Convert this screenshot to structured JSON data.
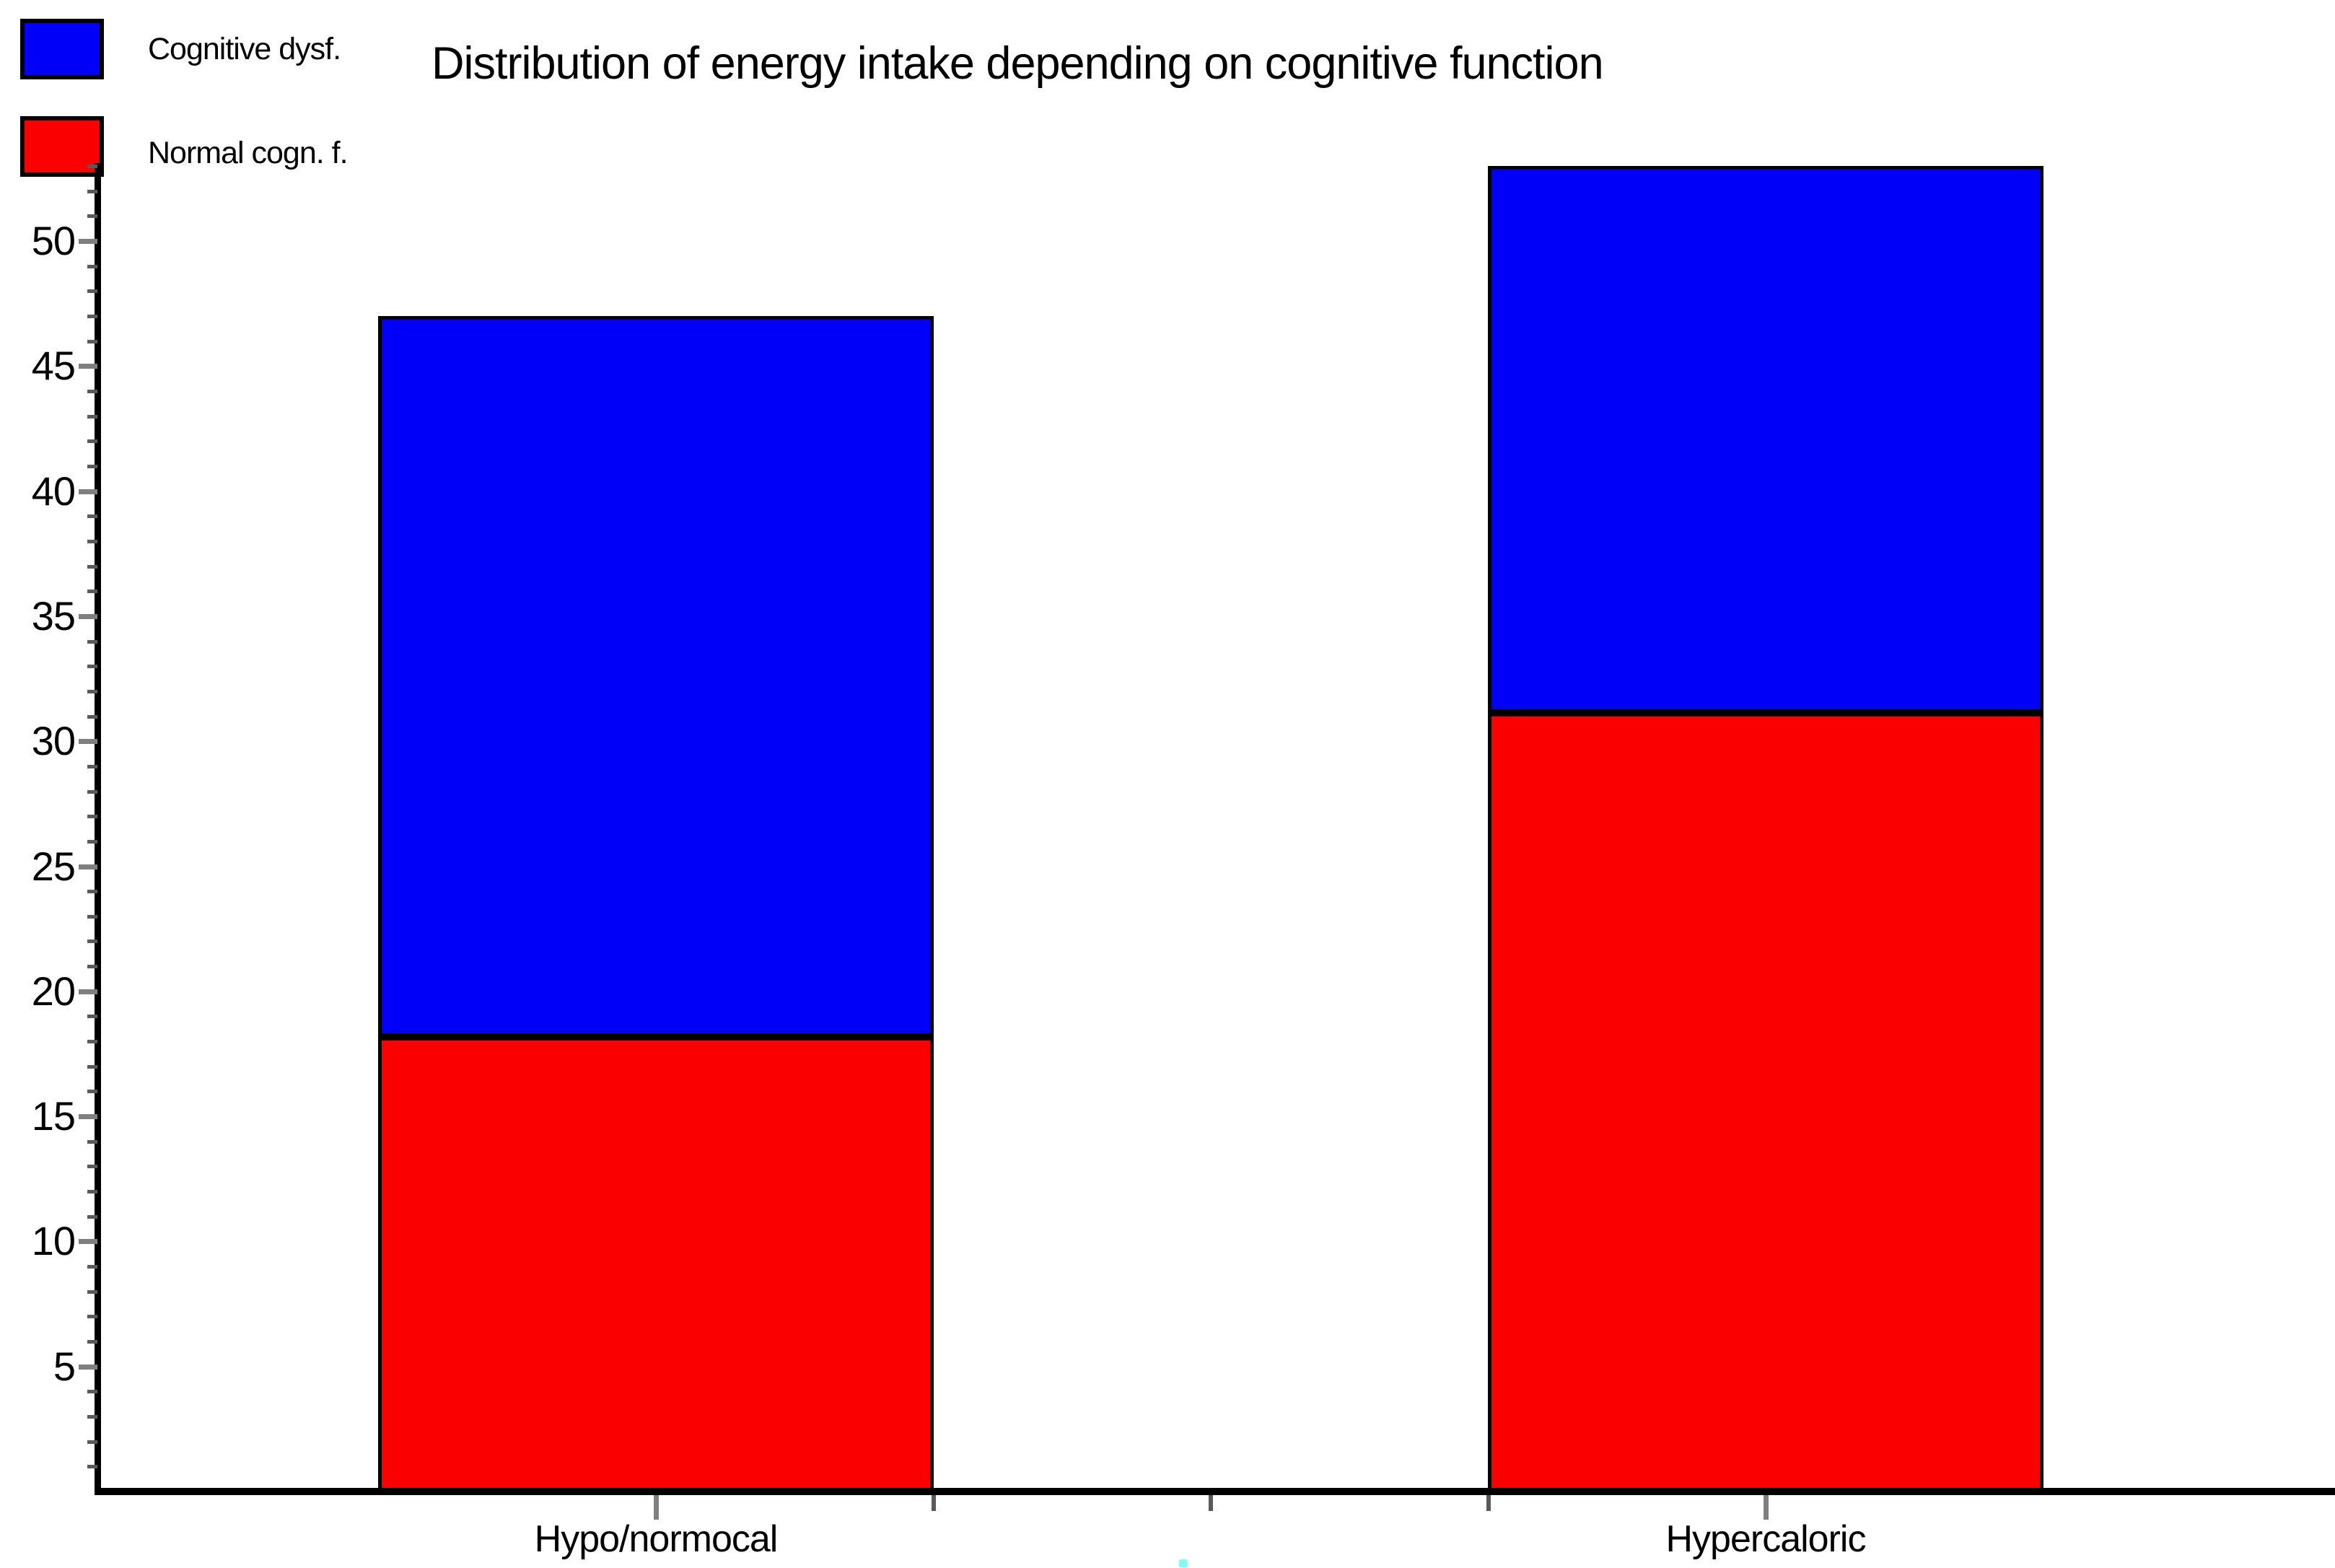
{
  "title": "Distribution of energy intake depending on cognitive function",
  "legend": {
    "items": [
      {
        "label": "Cognitive dysf.",
        "color": "#0000fa"
      },
      {
        "label": "Normal cogn. f.",
        "color": "#fb0000"
      }
    ]
  },
  "chart_data": {
    "type": "bar",
    "stacked": true,
    "title": "Distribution of energy intake depending on cognitive function",
    "categories": [
      "Hypo/normocal",
      "Hypercaloric"
    ],
    "series": [
      {
        "name": "Cognitive dysf.",
        "color": "#0000fa",
        "values": [
          29,
          22
        ]
      },
      {
        "name": "Normal cogn. f.",
        "color": "#fb0000",
        "values": [
          18,
          31
        ]
      }
    ],
    "stack_totals": [
      47,
      53
    ],
    "segment_boundaries": [
      18,
      31
    ],
    "xlabel": "",
    "ylabel": "",
    "y_ticks": [
      5,
      10,
      15,
      20,
      25,
      30,
      35,
      40,
      45,
      50
    ],
    "y_minor_tick_step": 1,
    "ylim": [
      0,
      53.2
    ],
    "grid": false,
    "legend_position": "top-left",
    "bar_outline_color": "#000000"
  },
  "colors": {
    "tick_major": "#7f7f7f",
    "tick_minor": "#5a5a5a",
    "axis": "#000000",
    "text": "#000000",
    "background": "#ffffff",
    "artifact_dot": "#82fff2"
  }
}
